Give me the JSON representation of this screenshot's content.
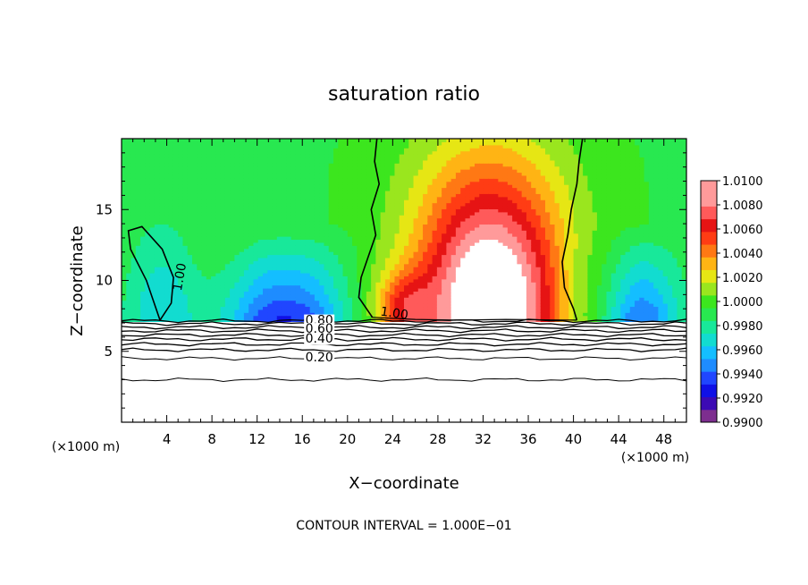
{
  "chart_data": {
    "type": "heatmap",
    "title": "saturation ratio",
    "xlabel": "X−coordinate",
    "ylabel": "Z−coordinate",
    "x_unit_left": "(×1000 m)",
    "x_unit_right": "(×1000 m)",
    "footer": "CONTOUR INTERVAL = 1.000E−01",
    "xlim": [
      0,
      50
    ],
    "ylim": [
      0,
      20
    ],
    "x_ticks": [
      "4",
      "8",
      "12",
      "16",
      "20",
      "24",
      "28",
      "32",
      "36",
      "40",
      "44",
      "48"
    ],
    "y_ticks": [
      "5",
      "10",
      "15"
    ],
    "colorbar": {
      "labels": [
        "1.0100",
        "1.0080",
        "1.0060",
        "1.0040",
        "1.0020",
        "1.0000",
        "0.9980",
        "0.9960",
        "0.9940",
        "0.9920",
        "0.9900"
      ],
      "range": [
        0.99,
        1.01
      ],
      "colors": [
        "#7d2e8f",
        "#3c0ab4",
        "#1010e6",
        "#2046ff",
        "#1e8cff",
        "#14beff",
        "#12dcd0",
        "#18e89a",
        "#28e850",
        "#3ce61e",
        "#9ae61e",
        "#e6e614",
        "#ffb414",
        "#ff7814",
        "#ff3c14",
        "#e61414",
        "#ff5a5a",
        "#ff9a9a"
      ]
    },
    "contour_labels": [
      "1.00",
      "1.00",
      "0.80",
      "0.60",
      "0.40",
      "0.20"
    ]
  },
  "colors": {
    "axes": "#000000",
    "background": "#ffffff",
    "saturated_fill": "#ffffff"
  }
}
